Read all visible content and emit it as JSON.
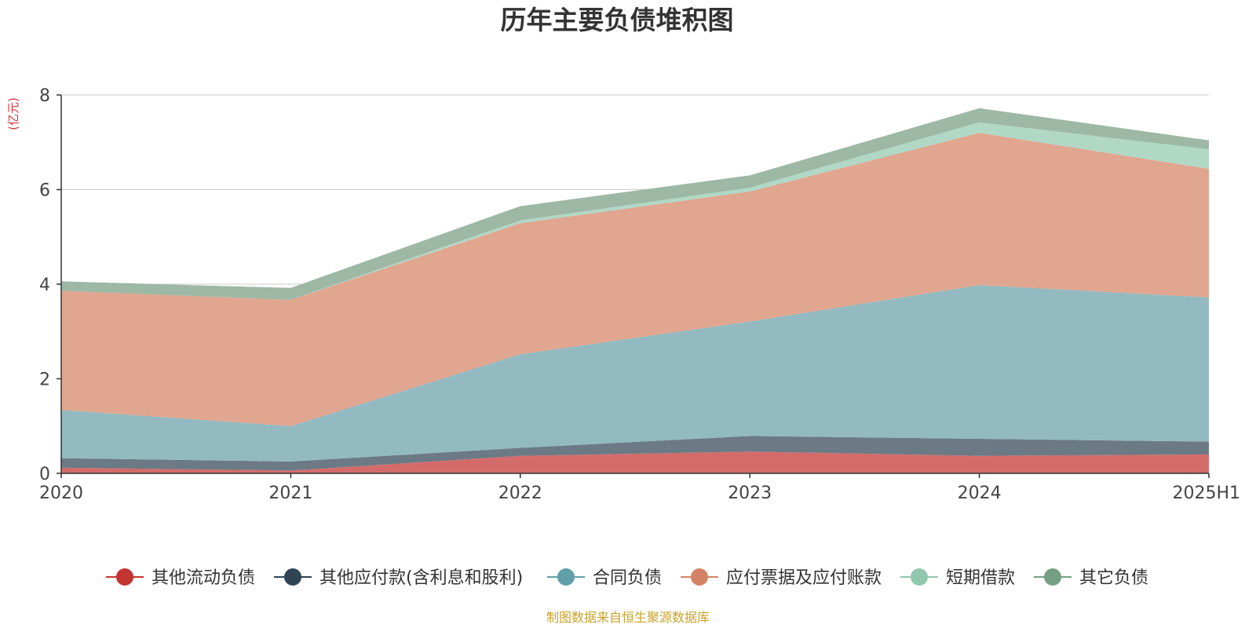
{
  "chart_data": {
    "type": "area",
    "stacked": true,
    "title": "历年主要负债堆积图",
    "unit_label": "(亿元)",
    "categories": [
      "2020",
      "2021",
      "2022",
      "2023",
      "2024",
      "2025H1"
    ],
    "ylim": [
      0,
      8
    ],
    "yticks": [
      "0",
      "2",
      "4",
      "6",
      "8"
    ],
    "grid": true,
    "legend_position": "bottom",
    "series": [
      {
        "name": "其他流动负债",
        "color": "#c23531",
        "fill": "#d46b6b",
        "values": [
          0.12,
          0.06,
          0.37,
          0.46,
          0.37,
          0.4
        ]
      },
      {
        "name": "其他应付款(含利息和股利)",
        "color": "#2f4554",
        "fill": "#6b7a85",
        "values": [
          0.2,
          0.19,
          0.17,
          0.33,
          0.36,
          0.27
        ]
      },
      {
        "name": "合同负债",
        "color": "#61a0a8",
        "fill": "#92bac0",
        "values": [
          1.02,
          0.75,
          1.98,
          2.42,
          3.25,
          3.05
        ]
      },
      {
        "name": "应付票据及应付账款",
        "color": "#d48265",
        "fill": "#e0a690",
        "values": [
          2.52,
          2.67,
          2.77,
          2.75,
          3.22,
          2.72
        ]
      },
      {
        "name": "短期借款",
        "color": "#91c7ae",
        "fill": "#b0d8c5",
        "values": [
          0.0,
          0.0,
          0.06,
          0.08,
          0.22,
          0.41
        ]
      },
      {
        "name": "其它负债",
        "color": "#749f83",
        "fill": "#9db8a5",
        "values": [
          0.2,
          0.25,
          0.3,
          0.26,
          0.3,
          0.19
        ]
      }
    ]
  },
  "footer": {
    "source": "制图数据来自恒生聚源数据库"
  }
}
